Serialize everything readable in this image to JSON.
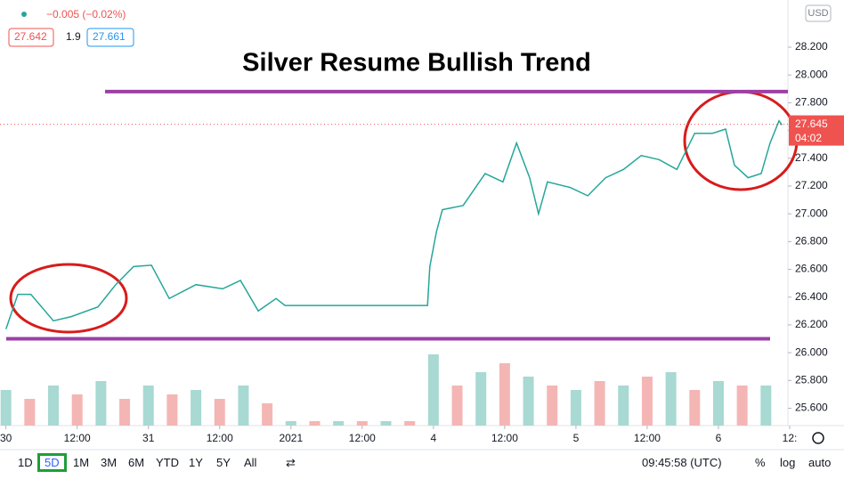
{
  "header": {
    "change": "−0.005 (−0.02%)",
    "bid": "27.642",
    "spread": "1.9",
    "ask": "27.661"
  },
  "chart_data": {
    "type": "line",
    "title": "Silver Resume Bullish Trend",
    "currency": "USD",
    "x": [
      0,
      2,
      4.2,
      8,
      11,
      15.5,
      18.5,
      21.5,
      24.5,
      27.5,
      32,
      36.5,
      39.5,
      42.5,
      45.5,
      47,
      71,
      71.4,
      72.5,
      73.5,
      77,
      80.7,
      83.7,
      86,
      88.2,
      89.7,
      91.2,
      95,
      98,
      101,
      104,
      107,
      110,
      113,
      116,
      119,
      121.2,
      122.7,
      125,
      127.2,
      128.7,
      130.2,
      130.7
    ],
    "series": [
      {
        "color": "#26a69a",
        "values": [
          26.17,
          26.42,
          26.42,
          26.23,
          26.26,
          26.33,
          26.49,
          26.62,
          26.63,
          26.39,
          26.49,
          26.46,
          26.52,
          26.3,
          26.39,
          26.34,
          26.34,
          26.62,
          26.87,
          27.03,
          27.06,
          27.29,
          27.23,
          27.51,
          27.26,
          27.0,
          27.23,
          27.19,
          27.13,
          27.26,
          27.32,
          27.42,
          27.39,
          27.32,
          27.58,
          27.58,
          27.61,
          27.35,
          27.26,
          27.29,
          27.51,
          27.67,
          27.64
        ]
      }
    ],
    "volume": {
      "x": [
        0,
        4,
        8,
        12,
        16,
        20,
        24,
        28,
        32,
        36,
        40,
        44,
        48,
        52,
        56,
        60,
        64,
        68,
        72,
        76,
        80,
        84,
        88,
        92,
        96,
        100,
        104,
        108,
        112,
        116,
        120,
        124,
        128
      ],
      "values": [
        40,
        30,
        45,
        35,
        50,
        30,
        45,
        35,
        40,
        30,
        45,
        25,
        5,
        5,
        5,
        5,
        5,
        5,
        80,
        45,
        60,
        70,
        55,
        45,
        40,
        50,
        45,
        55,
        60,
        40,
        50,
        45,
        45
      ],
      "ylim": [
        0,
        100
      ]
    },
    "xlim": [
      -1,
      131.7
    ],
    "ylim": [
      25.475,
      28.54
    ],
    "xticks": [
      {
        "value": 0,
        "label": "30"
      },
      {
        "value": 12,
        "label": "12:00"
      },
      {
        "value": 24,
        "label": "31"
      },
      {
        "value": 36,
        "label": "12:00"
      },
      {
        "value": 48,
        "label": "2021"
      },
      {
        "value": 60,
        "label": "12:00"
      },
      {
        "value": 72,
        "label": "4"
      },
      {
        "value": 84,
        "label": "12:00"
      },
      {
        "value": 96,
        "label": "5"
      },
      {
        "value": 108,
        "label": "12:00"
      },
      {
        "value": 120,
        "label": "6"
      },
      {
        "value": 132,
        "label": "12:"
      }
    ],
    "yticks": [
      {
        "value": 25.6,
        "label": "25.600"
      },
      {
        "value": 25.8,
        "label": "25.800"
      },
      {
        "value": 26,
        "label": "26.000"
      },
      {
        "value": 26.2,
        "label": "26.200"
      },
      {
        "value": 26.4,
        "label": "26.400"
      },
      {
        "value": 26.6,
        "label": "26.600"
      },
      {
        "value": 26.8,
        "label": "26.800"
      },
      {
        "value": 27,
        "label": "27.000"
      },
      {
        "value": 27.2,
        "label": "27.200"
      },
      {
        "value": 27.4,
        "label": "27.400"
      },
      {
        "value": 27.6,
        "label": "27.600"
      },
      {
        "value": 27.8,
        "label": "27.800"
      },
      {
        "value": 28,
        "label": "28.000"
      },
      {
        "value": 28.2,
        "label": "28.200"
      }
    ],
    "grid": false,
    "last_price": {
      "value": 27.645,
      "label": "27.645"
    },
    "countdown": "04:02",
    "resistance": 27.88,
    "support": 26.1,
    "level_color": "#9c3fa6"
  },
  "toolbar": {
    "ranges": [
      "1D",
      "5D",
      "1M",
      "3M",
      "6M",
      "YTD",
      "1Y",
      "5Y",
      "All"
    ],
    "time": "09:45:58 (UTC)",
    "percent": "%",
    "log": "log",
    "auto": "auto"
  }
}
